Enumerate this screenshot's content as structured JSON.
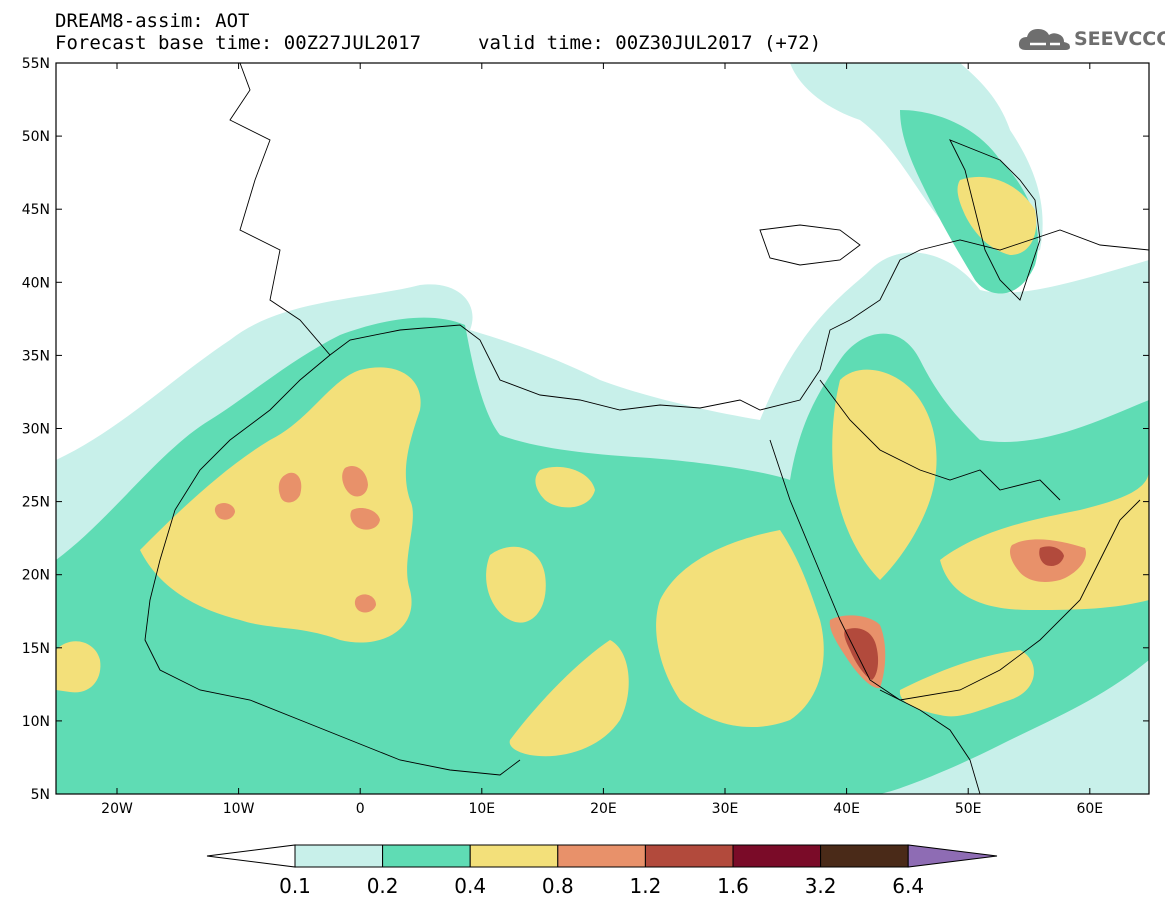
{
  "header": {
    "title": "DREAM8-assim: AOT",
    "base_time": "Forecast base time: 00Z27JUL2017",
    "valid_time": "valid time: 00Z30JUL2017 (+72)"
  },
  "logo": {
    "text": "SEEVCCC",
    "icon": "cloud-icon"
  },
  "map": {
    "lat_labels": [
      "55N",
      "50N",
      "45N",
      "40N",
      "35N",
      "30N",
      "25N",
      "20N",
      "15N",
      "10N",
      "5N"
    ],
    "lon_labels": [
      "20W",
      "10W",
      "0",
      "10E",
      "20E",
      "30E",
      "40E",
      "50E",
      "60E"
    ],
    "colors": {
      "c01": "#c8f0ea",
      "c02": "#5fdcb4",
      "c04": "#f3e07a",
      "c08": "#e8916a",
      "c12": "#b24a3c",
      "c16": "#7a0b28",
      "c32": "#4a2a18",
      "c64": "#8e6cb4"
    }
  },
  "colorbar": {
    "labels": [
      "0.1",
      "0.2",
      "0.4",
      "0.8",
      "1.2",
      "1.6",
      "3.2",
      "6.4"
    ],
    "colors": [
      "#c8f0ea",
      "#5fdcb4",
      "#f3e07a",
      "#e8916a",
      "#b24a3c",
      "#7a0b28",
      "#4a2a18"
    ],
    "over_color": "#8e6cb4",
    "under_color": "#ffffff"
  }
}
